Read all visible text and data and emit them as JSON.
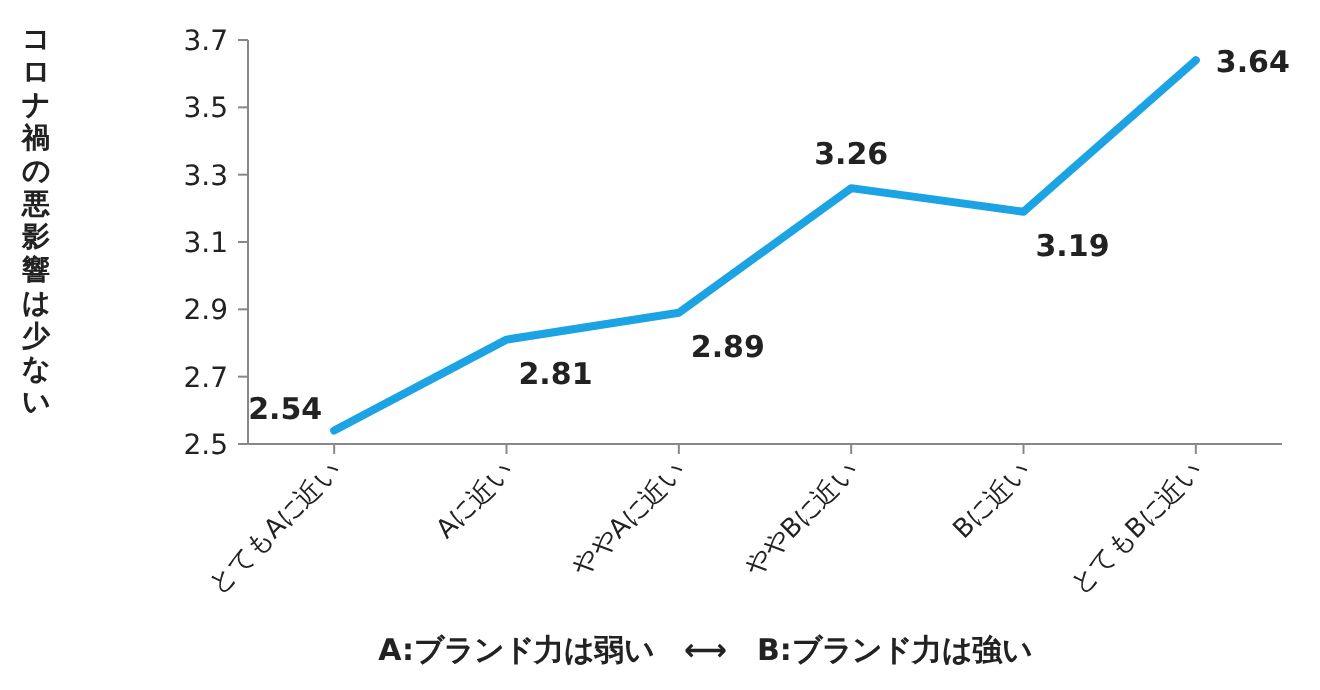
{
  "chart_data": {
    "type": "line",
    "ylabel": "コロナ禍の悪影響は少ない",
    "xlabel": "A:ブランド力は弱い　⟷　B:ブランド力は強い",
    "categories": [
      "とてもAに近い",
      "Aに近い",
      "ややAに近い",
      "ややBに近い",
      "Bに近い",
      "とてもBに近い"
    ],
    "series": [
      {
        "color": "#1ba3e3",
        "values": [
          2.54,
          2.81,
          2.89,
          3.26,
          3.19,
          3.64
        ]
      }
    ],
    "ylim": [
      2.5,
      3.7
    ],
    "yticks": [
      2.5,
      2.7,
      2.9,
      3.1,
      3.3,
      3.5,
      3.7
    ],
    "data_labels": true
  }
}
